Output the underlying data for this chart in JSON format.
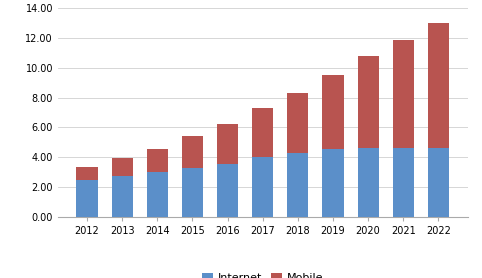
{
  "years": [
    2012,
    2013,
    2014,
    2015,
    2016,
    2017,
    2018,
    2019,
    2020,
    2021,
    2022
  ],
  "internet": [
    2.45,
    2.75,
    3.0,
    3.3,
    3.55,
    4.0,
    4.3,
    4.55,
    4.6,
    4.65,
    4.6
  ],
  "mobile": [
    0.9,
    1.2,
    1.55,
    2.1,
    2.7,
    3.3,
    4.0,
    5.0,
    6.2,
    7.25,
    8.4
  ],
  "internet_color": "#5B8FC9",
  "mobile_color": "#B85450",
  "ylim": [
    0,
    14.0
  ],
  "yticks": [
    0.0,
    2.0,
    4.0,
    6.0,
    8.0,
    10.0,
    12.0,
    14.0
  ],
  "legend_labels": [
    "Internet",
    "Mobile"
  ],
  "bar_width": 0.6,
  "bg_color": "#ffffff",
  "grid_color": "#d0d0d0"
}
